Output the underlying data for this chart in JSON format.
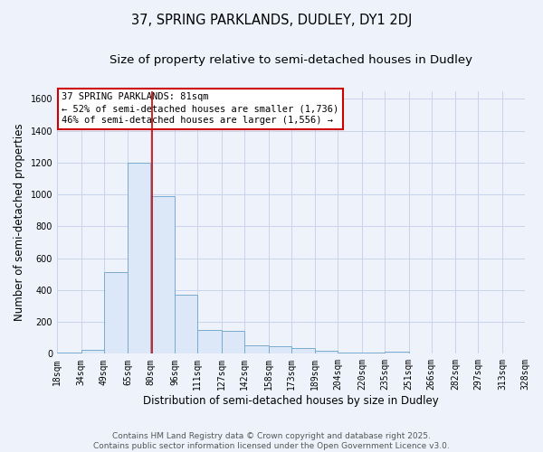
{
  "title_line1": "37, SPRING PARKLANDS, DUDLEY, DY1 2DJ",
  "title_line2": "Size of property relative to semi-detached houses in Dudley",
  "xlabel": "Distribution of semi-detached houses by size in Dudley",
  "ylabel": "Number of semi-detached properties",
  "bin_edges": [
    18,
    34,
    49,
    65,
    80,
    96,
    111,
    127,
    142,
    158,
    173,
    189,
    204,
    220,
    235,
    251,
    266,
    282,
    297,
    313,
    328
  ],
  "bar_heights": [
    10,
    25,
    510,
    1200,
    990,
    370,
    150,
    145,
    55,
    50,
    35,
    20,
    10,
    5,
    15,
    2,
    2,
    2,
    2,
    2
  ],
  "bar_color": "#dce8f8",
  "bar_edge_color": "#7aaad0",
  "grid_color": "#c8d4ec",
  "background_color": "#edf2fb",
  "vline_x": 81,
  "vline_color": "#cc0000",
  "annotation_text": "37 SPRING PARKLANDS: 81sqm\n← 52% of semi-detached houses are smaller (1,736)\n46% of semi-detached houses are larger (1,556) →",
  "annotation_box_color": "#cc0000",
  "ylim": [
    0,
    1650
  ],
  "yticks": [
    0,
    200,
    400,
    600,
    800,
    1000,
    1200,
    1400,
    1600
  ],
  "footer_line1": "Contains HM Land Registry data © Crown copyright and database right 2025.",
  "footer_line2": "Contains public sector information licensed under the Open Government Licence v3.0.",
  "title_fontsize": 10.5,
  "subtitle_fontsize": 9.5,
  "axis_label_fontsize": 8.5,
  "tick_fontsize": 7,
  "annotation_fontsize": 7.5,
  "footer_fontsize": 6.5
}
